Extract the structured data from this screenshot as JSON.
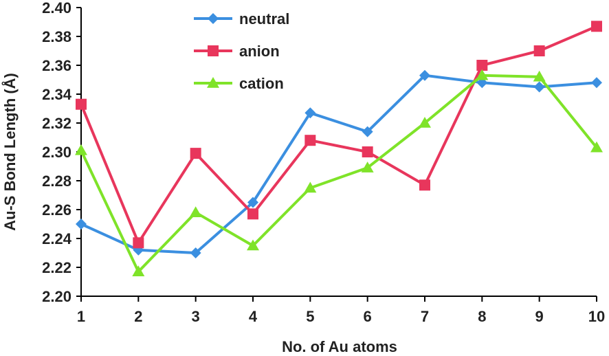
{
  "chart_data": {
    "type": "line",
    "x": [
      1,
      2,
      3,
      4,
      5,
      6,
      7,
      8,
      9,
      10
    ],
    "xlabel": "No. of Au atoms",
    "ylabel": "Au-S Bond Length (Å)",
    "ylim": [
      2.2,
      2.4
    ],
    "yticks": [
      "2.20",
      "2.22",
      "2.24",
      "2.26",
      "2.28",
      "2.30",
      "2.32",
      "2.34",
      "2.36",
      "2.38",
      "2.40"
    ],
    "xticks": [
      "1",
      "2",
      "3",
      "4",
      "5",
      "6",
      "7",
      "8",
      "9",
      "10"
    ],
    "grid": false,
    "legend_position": "top-left",
    "series": [
      {
        "name": "neutral",
        "color": "#3B8FE0",
        "marker": "diamond",
        "values": [
          2.25,
          2.232,
          2.23,
          2.265,
          2.327,
          2.314,
          2.353,
          2.348,
          2.345,
          2.348
        ]
      },
      {
        "name": "anion",
        "color": "#E8365C",
        "marker": "square",
        "values": [
          2.333,
          2.237,
          2.299,
          2.257,
          2.308,
          2.3,
          2.277,
          2.36,
          2.37,
          2.387
        ]
      },
      {
        "name": "cation",
        "color": "#7FE329",
        "marker": "triangle",
        "values": [
          2.301,
          2.217,
          2.258,
          2.235,
          2.275,
          2.289,
          2.32,
          2.353,
          2.352,
          2.303
        ]
      }
    ]
  }
}
